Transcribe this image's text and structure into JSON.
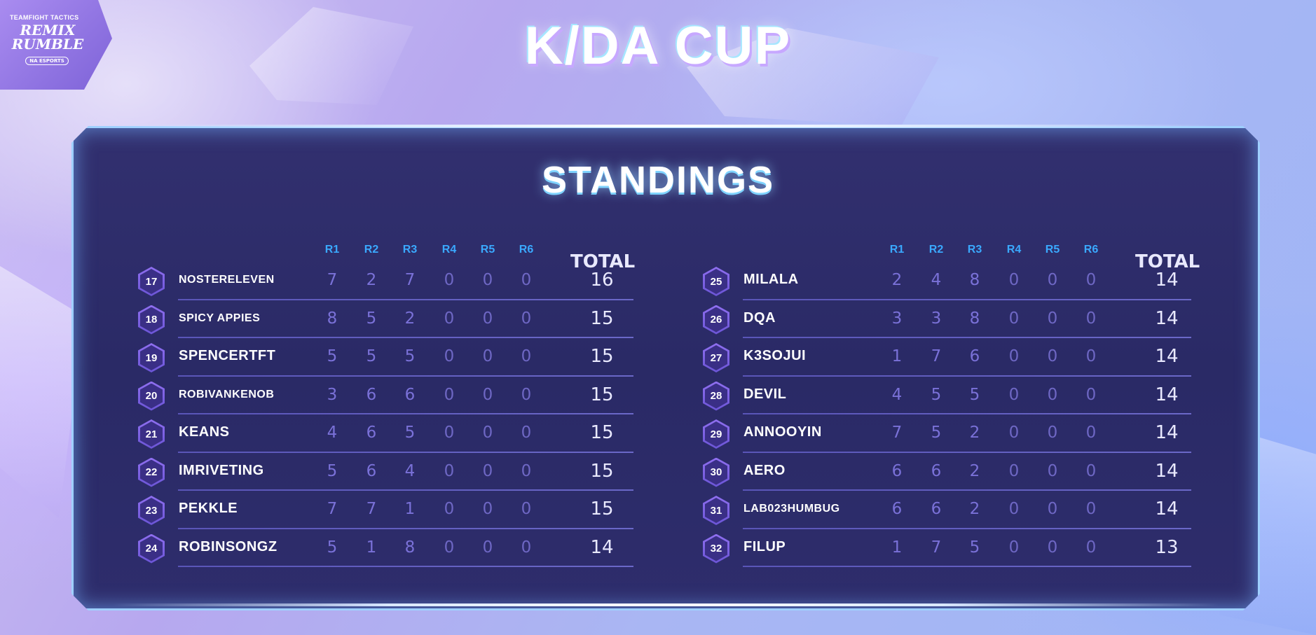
{
  "logo": {
    "line1": "TEAMFIGHT TACTICS",
    "line2": "REMIX RUMBLE",
    "line3": "NA ESPORTS"
  },
  "event_title": "K/DA CUP",
  "section_title": "STANDINGS",
  "columns": [
    "R1",
    "R2",
    "R3",
    "R4",
    "R5",
    "R6",
    "TOTAL"
  ],
  "left_table": [
    {
      "rank": "17",
      "name": "NOSTERELEVEN",
      "r": [
        "7",
        "2",
        "7",
        "0",
        "0",
        "0"
      ],
      "total": "16"
    },
    {
      "rank": "18",
      "name": "SPICY APPIES",
      "r": [
        "8",
        "5",
        "2",
        "0",
        "0",
        "0"
      ],
      "total": "15"
    },
    {
      "rank": "19",
      "name": "SPENCERTFT",
      "r": [
        "5",
        "5",
        "5",
        "0",
        "0",
        "0"
      ],
      "total": "15"
    },
    {
      "rank": "20",
      "name": "ROBIVANKENOB",
      "r": [
        "3",
        "6",
        "6",
        "0",
        "0",
        "0"
      ],
      "total": "15"
    },
    {
      "rank": "21",
      "name": "KEANS",
      "r": [
        "4",
        "6",
        "5",
        "0",
        "0",
        "0"
      ],
      "total": "15"
    },
    {
      "rank": "22",
      "name": "IMRIVETING",
      "r": [
        "5",
        "6",
        "4",
        "0",
        "0",
        "0"
      ],
      "total": "15"
    },
    {
      "rank": "23",
      "name": "PEKKLE",
      "r": [
        "7",
        "7",
        "1",
        "0",
        "0",
        "0"
      ],
      "total": "15"
    },
    {
      "rank": "24",
      "name": "ROBINSONGZ",
      "r": [
        "5",
        "1",
        "8",
        "0",
        "0",
        "0"
      ],
      "total": "14"
    }
  ],
  "right_table": [
    {
      "rank": "25",
      "name": "MILALA",
      "r": [
        "2",
        "4",
        "8",
        "0",
        "0",
        "0"
      ],
      "total": "14"
    },
    {
      "rank": "26",
      "name": "DQA",
      "r": [
        "3",
        "3",
        "8",
        "0",
        "0",
        "0"
      ],
      "total": "14"
    },
    {
      "rank": "27",
      "name": "K3SOJUI",
      "r": [
        "1",
        "7",
        "6",
        "0",
        "0",
        "0"
      ],
      "total": "14"
    },
    {
      "rank": "28",
      "name": "DEVIL",
      "r": [
        "4",
        "5",
        "5",
        "0",
        "0",
        "0"
      ],
      "total": "14"
    },
    {
      "rank": "29",
      "name": "ANNOOYIN",
      "r": [
        "7",
        "5",
        "2",
        "0",
        "0",
        "0"
      ],
      "total": "14"
    },
    {
      "rank": "30",
      "name": "AERO",
      "r": [
        "6",
        "6",
        "2",
        "0",
        "0",
        "0"
      ],
      "total": "14"
    },
    {
      "rank": "31",
      "name": "LAB023HUMBUG",
      "r": [
        "6",
        "6",
        "2",
        "0",
        "0",
        "0"
      ],
      "total": "14"
    },
    {
      "rank": "32",
      "name": "FILUP",
      "r": [
        "1",
        "7",
        "5",
        "0",
        "0",
        "0"
      ],
      "total": "13"
    }
  ]
}
